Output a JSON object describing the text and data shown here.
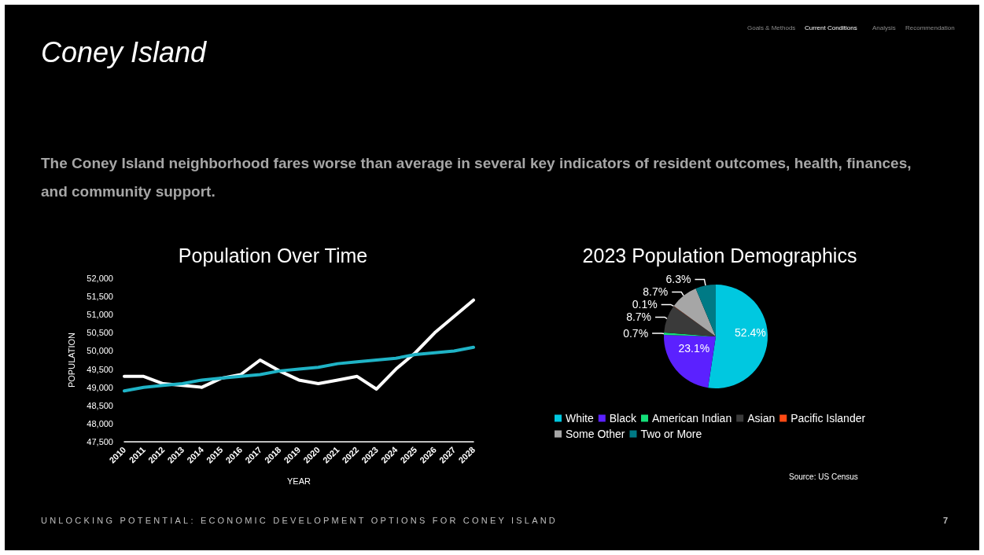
{
  "chart_data": [
    {
      "type": "other",
      "title": "Coney Island",
      "subtitle": "The Coney Island neighborhood fares worse than average in several key indicators of resident outcomes, health, finances, and community support.",
      "annotations": [
        "Goals & Methods",
        "Current Conditions",
        "Analysis",
        "Recommendation",
        "UNLOCKING POTENTIAL: ECONOMIC DEVELOPMENT OPTIONS FOR CONEY ISLAND",
        "7"
      ]
    },
    {
      "type": "line",
      "title": "Population Over Time",
      "xlabel": "YEAR",
      "ylabel": "POPULATION",
      "categories": [
        "2010",
        "2011",
        "2012",
        "2013",
        "2014",
        "2015",
        "2016",
        "2017",
        "2018",
        "2019",
        "2020",
        "2021",
        "2022",
        "2023",
        "2024",
        "2025",
        "2026",
        "2027",
        "2028"
      ],
      "series": [
        {
          "color": "#ffffff",
          "values": [
            49300,
            49300,
            49100,
            49050,
            49000,
            49250,
            49350,
            49750,
            49450,
            49200,
            49100,
            49200,
            49300,
            48950,
            49500,
            49950,
            50500,
            50950,
            51400
          ]
        },
        {
          "color": "#1fb3c6",
          "values": [
            48900,
            49000,
            49050,
            49100,
            49200,
            49250,
            49300,
            49350,
            49450,
            49500,
            49550,
            49650,
            49700,
            49750,
            49800,
            49900,
            49950,
            50000,
            50100
          ]
        }
      ],
      "ylim": [
        47500,
        52000
      ],
      "yticks": [
        {
          "value": 47500,
          "label": "47,500"
        },
        {
          "value": 48000,
          "label": "48,000"
        },
        {
          "value": 48500,
          "label": "48,500"
        },
        {
          "value": 49000,
          "label": "49,000"
        },
        {
          "value": 49500,
          "label": "49,500"
        },
        {
          "value": 50000,
          "label": "50,000"
        },
        {
          "value": 50500,
          "label": "50,500"
        },
        {
          "value": 51000,
          "label": "51,000"
        },
        {
          "value": 51500,
          "label": "51,500"
        },
        {
          "value": 52000,
          "label": "52,000"
        }
      ],
      "grid": false,
      "legend": false,
      "marker": "none",
      "line_style": "solid"
    },
    {
      "type": "pie",
      "title": "2023 Population Demographics",
      "categories": [
        "White",
        "Black",
        "American Indian",
        "Asian",
        "Pacific Islander",
        "Some Other",
        "Two or More"
      ],
      "values": [
        52.4,
        23.1,
        0.7,
        8.7,
        0.1,
        8.7,
        6.3
      ],
      "colors": [
        "#00c8e0",
        "#5b21ff",
        "#14e07a",
        "#3a3a3a",
        "#ff4a14",
        "#a6a6a6",
        "#007a85"
      ],
      "value_labels": [
        "52.4%",
        "23.1%",
        "0.7%",
        "8.7%",
        "0.1%",
        "8.7%",
        "6.3%"
      ],
      "legend": "bottom",
      "annotations": [
        "Source: US Census"
      ]
    }
  ]
}
